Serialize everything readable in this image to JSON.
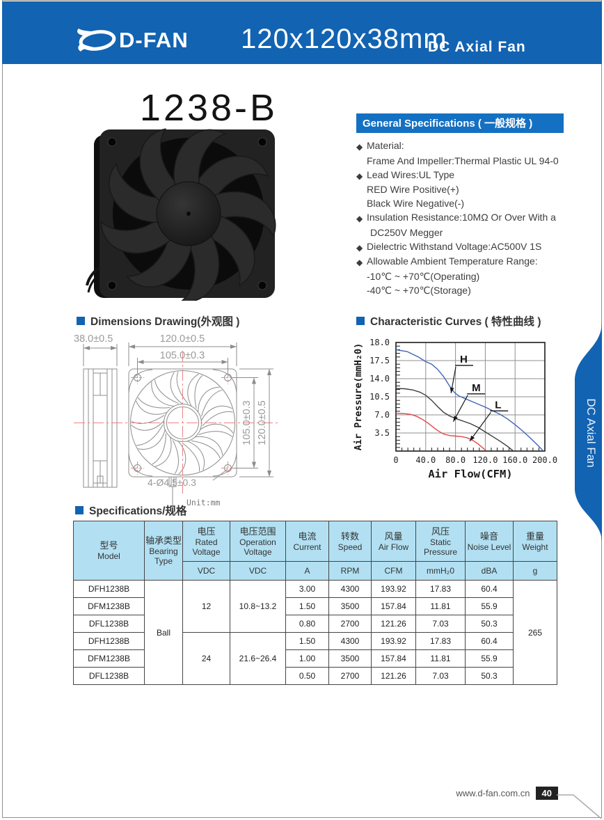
{
  "header": {
    "brand": "D-FAN",
    "size_title": "120x120x38mm",
    "subtitle": "DC Axial Fan"
  },
  "product_title": "1238-B",
  "general_specs": {
    "title": "General Specifications ( 一般规格 )",
    "lines": [
      {
        "prefix": "◆",
        "text": "Material:"
      },
      {
        "prefix": "",
        "text": "Frame And Impeller:Thermal Plastic UL 94-0"
      },
      {
        "prefix": "◆",
        "text": "Lead Wires:UL Type"
      },
      {
        "prefix": "",
        "text": "RED Wire Positive(+)"
      },
      {
        "prefix": "",
        "text": "Black Wire Negative(-)"
      },
      {
        "prefix": "◆",
        "text": "Insulation Resistance:10MΩ Or Over With a"
      },
      {
        "prefix": "",
        "text": "DC250V Megger"
      },
      {
        "prefix": "◆",
        "text": "Dielectric Withstand Voltage:AC500V 1S"
      },
      {
        "prefix": "◆",
        "text": "Allowable Ambient Temperature Range:"
      },
      {
        "prefix": "",
        "text": "-10℃ ~ +70℃(Operating)"
      },
      {
        "prefix": "",
        "text": "-40℃ ~ +70℃(Storage)"
      }
    ]
  },
  "section_titles": {
    "dimensions": "Dimensions Drawing(外观图 )",
    "curves": "Characteristic Curves ( 特性曲线 )",
    "specifications": "Specifications/规格"
  },
  "drawing": {
    "depth": "38.0±0.5",
    "width": "120.0±0.5",
    "hole_pitch_top": "105.0±0.3",
    "hole_pitch_side": "105.0±0.3",
    "height": "120.0±0.5",
    "holes": "4-Ø4.5±0.3",
    "unit": "Unit:mm"
  },
  "chart_data": {
    "type": "line",
    "title": "Characteristic Curves ( 特性曲线 )",
    "xlabel": "Air Flow(CFM)",
    "ylabel": "Air Pressure(mmH₂0)",
    "xlim": [
      0,
      200
    ],
    "ylim": [
      0,
      18
    ],
    "xtick_values": [
      0,
      40,
      80,
      120,
      160,
      200
    ],
    "xtick_labels": [
      "0",
      "40.0",
      "80.0",
      "120.0",
      "160.0",
      "200.0"
    ],
    "ytick_top_label": "18.0",
    "ygrid_values": [
      17.5,
      14.0,
      10.5,
      7.0,
      3.5
    ],
    "ygrid_labels": [
      "17.5",
      "14.0",
      "10.5",
      "7.0",
      "3.5"
    ],
    "grid": true,
    "legend_position": "inline-annotations",
    "series": [
      {
        "name": "H",
        "color": "#3f63b8",
        "points": [
          [
            0,
            17.8
          ],
          [
            15,
            17.75
          ],
          [
            30,
            17.6
          ],
          [
            40,
            17.3
          ],
          [
            48,
            16.8
          ],
          [
            56,
            15.8
          ],
          [
            64,
            14.4
          ],
          [
            72,
            12.6
          ],
          [
            78,
            11.4
          ],
          [
            84,
            10.7
          ],
          [
            92,
            10.2
          ],
          [
            100,
            9.7
          ],
          [
            110,
            9.1
          ],
          [
            120,
            8.5
          ],
          [
            130,
            7.8
          ],
          [
            140,
            7.1
          ],
          [
            150,
            6.2
          ],
          [
            160,
            5.1
          ],
          [
            170,
            3.9
          ],
          [
            180,
            2.6
          ],
          [
            190,
            1.2
          ],
          [
            197,
            0.15
          ]
        ]
      },
      {
        "name": "M",
        "color": "#3b3b3b",
        "points": [
          [
            0,
            12.1
          ],
          [
            12,
            12.05
          ],
          [
            22,
            11.85
          ],
          [
            32,
            11.4
          ],
          [
            40,
            10.8
          ],
          [
            48,
            9.8
          ],
          [
            56,
            8.6
          ],
          [
            64,
            7.5
          ],
          [
            72,
            6.8
          ],
          [
            80,
            6.3
          ],
          [
            90,
            5.8
          ],
          [
            100,
            5.3
          ],
          [
            110,
            4.6
          ],
          [
            120,
            3.7
          ],
          [
            130,
            2.8
          ],
          [
            140,
            1.9
          ],
          [
            150,
            0.9
          ],
          [
            157,
            0.1
          ]
        ]
      },
      {
        "name": "L",
        "color": "#e04848",
        "points": [
          [
            0,
            7.3
          ],
          [
            10,
            7.25
          ],
          [
            20,
            7.1
          ],
          [
            28,
            6.7
          ],
          [
            36,
            6.1
          ],
          [
            44,
            5.3
          ],
          [
            52,
            4.4
          ],
          [
            58,
            3.8
          ],
          [
            64,
            3.3
          ],
          [
            72,
            3.0
          ],
          [
            80,
            2.9
          ],
          [
            88,
            2.8
          ],
          [
            96,
            2.55
          ],
          [
            104,
            2.0
          ],
          [
            110,
            1.4
          ],
          [
            116,
            0.7
          ],
          [
            121,
            0.1
          ]
        ]
      }
    ],
    "annotations": [
      {
        "label": "H",
        "label_at": [
          86,
          17.1
        ],
        "arrow_to": [
          74,
          11.2
        ]
      },
      {
        "label": "M",
        "label_at": [
          102,
          11.6
        ],
        "arrow_to": [
          77,
          5.7
        ]
      },
      {
        "label": "L",
        "label_at": [
          133,
          8.3
        ],
        "arrow_to": [
          99,
          1.9
        ]
      }
    ]
  },
  "spec_table": {
    "columns": [
      {
        "cn": "型号",
        "en": "Model"
      },
      {
        "cn": "轴承类型",
        "en": "Bearing Type"
      },
      {
        "cn": "电压",
        "en": "Rated Voltage",
        "unit": "VDC"
      },
      {
        "cn": "电压范围",
        "en": "Operation Voltage",
        "unit": "VDC"
      },
      {
        "cn": "电流",
        "en": "Current",
        "unit": "A"
      },
      {
        "cn": "转数",
        "en": "Speed",
        "unit": "RPM"
      },
      {
        "cn": "风量",
        "en": "Air Flow",
        "unit": "CFM"
      },
      {
        "cn": "风压",
        "en": "Static Pressure",
        "unit": "mmH₂0"
      },
      {
        "cn": "噪音",
        "en": "Noise Level",
        "unit": "dBA"
      },
      {
        "cn": "重量",
        "en": "Weight",
        "unit": "g"
      }
    ],
    "bearing_type": "Ball",
    "weight": "265",
    "voltage_groups": [
      {
        "rated": "12",
        "range": "10.8~13.2"
      },
      {
        "rated": "24",
        "range": "21.6~26.4"
      }
    ],
    "rows": [
      {
        "model": "DFH1238B",
        "current": "3.00",
        "speed": "4300",
        "airflow": "193.92",
        "pressure": "17.83",
        "noise": "60.4"
      },
      {
        "model": "DFM1238B",
        "current": "1.50",
        "speed": "3500",
        "airflow": "157.84",
        "pressure": "11.81",
        "noise": "55.9"
      },
      {
        "model": "DFL1238B",
        "current": "0.80",
        "speed": "2700",
        "airflow": "121.26",
        "pressure": "7.03",
        "noise": "50.3"
      },
      {
        "model": "DFH1238B",
        "current": "1.50",
        "speed": "4300",
        "airflow": "193.92",
        "pressure": "17.83",
        "noise": "60.4"
      },
      {
        "model": "DFM1238B",
        "current": "1.00",
        "speed": "3500",
        "airflow": "157.84",
        "pressure": "11.81",
        "noise": "55.9"
      },
      {
        "model": "DFL1238B",
        "current": "0.50",
        "speed": "2700",
        "airflow": "121.26",
        "pressure": "7.03",
        "noise": "50.3"
      }
    ]
  },
  "side_tab": {
    "label": "DC Axial Fan"
  },
  "footer": {
    "website": "www.d-fan.com.cn",
    "page_number": "40"
  },
  "colors": {
    "banner_blue": "#1263b2",
    "section_bar_blue": "#1470c2",
    "table_header_bg": "#b2e0f2",
    "curve_h": "#3f63b8",
    "curve_m": "#3b3b3b",
    "curve_l": "#e04848",
    "centerline_red": "#f08080",
    "drawing_gray": "#8c8c8c"
  }
}
